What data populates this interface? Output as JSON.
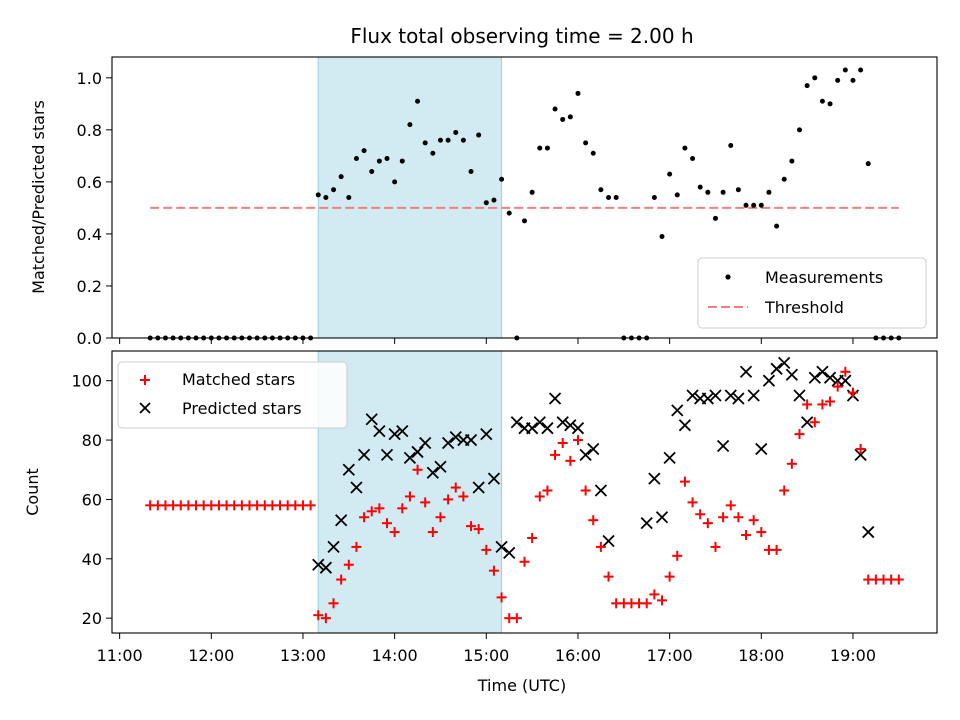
{
  "chart_data": [
    {
      "type": "scatter",
      "title": "Flux total observing time = 2.00 h",
      "xlabel": "",
      "ylabel": "Matched/Predicted stars",
      "ylim": [
        0,
        1.08
      ],
      "yticks": [
        "0.0",
        "0.2",
        "0.4",
        "0.6",
        "0.8",
        "1.0"
      ],
      "ytick_values": [
        0,
        0.2,
        0.4,
        0.6,
        0.8,
        1.0
      ],
      "shaded_region": [
        "13:10",
        "15:10"
      ],
      "legend": {
        "placement": "lower-right",
        "entries": [
          "Measurements",
          "Threshold"
        ]
      },
      "threshold": {
        "name": "Threshold",
        "value": 0.5,
        "x": [
          "11:20",
          "19:30"
        ],
        "color": "#f08080"
      },
      "series": [
        {
          "name": "Measurements",
          "color": "#000000",
          "x": [
            "11:20",
            "11:25",
            "11:30",
            "11:35",
            "11:40",
            "11:45",
            "11:50",
            "11:55",
            "12:00",
            "12:05",
            "12:10",
            "12:15",
            "12:20",
            "12:25",
            "12:30",
            "12:35",
            "12:40",
            "12:45",
            "12:50",
            "12:55",
            "13:00",
            "13:05",
            "13:10",
            "13:15",
            "13:20",
            "13:25",
            "13:30",
            "13:35",
            "13:40",
            "13:45",
            "13:50",
            "13:55",
            "14:00",
            "14:05",
            "14:10",
            "14:15",
            "14:20",
            "14:25",
            "14:30",
            "14:35",
            "14:40",
            "14:45",
            "14:50",
            "14:55",
            "15:00",
            "15:05",
            "15:10",
            "15:15",
            "15:20",
            "15:25",
            "15:30",
            "15:35",
            "15:40",
            "15:45",
            "15:50",
            "15:55",
            "16:00",
            "16:05",
            "16:10",
            "16:15",
            "16:20",
            "16:25",
            "16:30",
            "16:35",
            "16:40",
            "16:45",
            "16:50",
            "16:55",
            "17:00",
            "17:05",
            "17:10",
            "17:15",
            "17:20",
            "17:25",
            "17:30",
            "17:35",
            "17:40",
            "17:45",
            "17:50",
            "17:55",
            "18:00",
            "18:05",
            "18:10",
            "18:15",
            "18:20",
            "18:25",
            "18:30",
            "18:35",
            "18:40",
            "18:45",
            "18:50",
            "18:55",
            "19:00",
            "19:05",
            "19:10",
            "19:15",
            "19:20",
            "19:25",
            "19:30"
          ],
          "y": [
            0,
            0,
            0,
            0,
            0,
            0,
            0,
            0,
            0,
            0,
            0,
            0,
            0,
            0,
            0,
            0,
            0,
            0,
            0,
            0,
            0,
            0,
            0.55,
            0.54,
            0.57,
            0.62,
            0.54,
            0.69,
            0.72,
            0.64,
            0.68,
            0.69,
            0.6,
            0.68,
            0.82,
            0.91,
            0.75,
            0.71,
            0.76,
            0.76,
            0.79,
            0.76,
            0.64,
            0.78,
            0.52,
            0.53,
            0.61,
            0.48,
            0,
            0.45,
            0.56,
            0.73,
            0.73,
            0.88,
            0.84,
            0.85,
            0.94,
            0.75,
            0.71,
            0.57,
            0.54,
            0.54,
            0,
            0,
            0,
            0,
            0.54,
            0.39,
            0.63,
            0.55,
            0.73,
            0.69,
            0.58,
            0.56,
            0.46,
            0.56,
            0.74,
            0.57,
            0.51,
            0.51,
            0.51,
            0.56,
            0.43,
            0.61,
            0.68,
            0.8,
            0.97,
            1.0,
            0.91,
            0.9,
            0.99,
            1.03,
            0.99,
            1.03,
            0.67,
            0,
            0,
            0,
            0
          ]
        }
      ]
    },
    {
      "type": "scatter",
      "title": "",
      "xlabel": "Time (UTC)",
      "ylabel": "Count",
      "xlim": [
        "10:55",
        "19:55"
      ],
      "xticks": [
        "11:00",
        "12:00",
        "13:00",
        "14:00",
        "15:00",
        "16:00",
        "17:00",
        "18:00",
        "19:00"
      ],
      "ylim": [
        15,
        110
      ],
      "yticks": [
        "20",
        "40",
        "60",
        "80",
        "100"
      ],
      "ytick_values": [
        20,
        40,
        60,
        80,
        100
      ],
      "shaded_region": [
        "13:10",
        "15:10"
      ],
      "legend": {
        "placement": "upper-left",
        "entries": [
          "Matched stars",
          "Predicted stars"
        ]
      },
      "series": [
        {
          "name": "Matched stars",
          "color": "#ff0000",
          "x": [
            "11:20",
            "11:25",
            "11:30",
            "11:35",
            "11:40",
            "11:45",
            "11:50",
            "11:55",
            "12:00",
            "12:05",
            "12:10",
            "12:15",
            "12:20",
            "12:25",
            "12:30",
            "12:35",
            "12:40",
            "12:45",
            "12:50",
            "12:55",
            "13:00",
            "13:05",
            "13:10",
            "13:15",
            "13:20",
            "13:25",
            "13:30",
            "13:35",
            "13:40",
            "13:45",
            "13:50",
            "13:55",
            "14:00",
            "14:05",
            "14:10",
            "14:15",
            "14:20",
            "14:25",
            "14:30",
            "14:35",
            "14:40",
            "14:45",
            "14:50",
            "14:55",
            "15:00",
            "15:05",
            "15:10",
            "15:15",
            "15:20",
            "15:25",
            "15:30",
            "15:35",
            "15:40",
            "15:45",
            "15:50",
            "15:55",
            "16:00",
            "16:05",
            "16:10",
            "16:15",
            "16:20",
            "16:25",
            "16:30",
            "16:35",
            "16:40",
            "16:45",
            "16:50",
            "16:55",
            "17:00",
            "17:05",
            "17:10",
            "17:15",
            "17:20",
            "17:25",
            "17:30",
            "17:35",
            "17:40",
            "17:45",
            "17:50",
            "17:55",
            "18:00",
            "18:05",
            "18:10",
            "18:15",
            "18:20",
            "18:25",
            "18:30",
            "18:35",
            "18:40",
            "18:45",
            "18:50",
            "18:55",
            "19:00",
            "19:05",
            "19:10",
            "19:15",
            "19:20",
            "19:25",
            "19:30"
          ],
          "y": [
            58,
            58,
            58,
            58,
            58,
            58,
            58,
            58,
            58,
            58,
            58,
            58,
            58,
            58,
            58,
            58,
            58,
            58,
            58,
            58,
            58,
            58,
            21,
            20,
            25,
            33,
            38,
            44,
            54,
            56,
            57,
            52,
            49,
            57,
            61,
            70,
            59,
            49,
            54,
            60,
            64,
            61,
            51,
            50,
            43,
            36,
            27,
            20,
            20,
            39,
            47,
            61,
            63,
            75,
            79,
            73,
            80,
            63,
            53,
            44,
            34,
            25,
            25,
            25,
            25,
            25,
            28,
            26,
            34,
            41,
            66,
            59,
            55,
            52,
            44,
            54,
            58,
            54,
            48,
            53,
            49,
            43,
            43,
            63,
            72,
            82,
            92,
            86,
            92,
            93,
            98,
            103,
            96,
            77,
            33,
            33,
            33,
            33,
            33
          ]
        },
        {
          "name": "Predicted stars",
          "color": "#000000",
          "x": [
            "13:10",
            "13:15",
            "13:20",
            "13:25",
            "13:30",
            "13:35",
            "13:40",
            "13:45",
            "13:50",
            "13:55",
            "14:00",
            "14:05",
            "14:10",
            "14:15",
            "14:20",
            "14:25",
            "14:30",
            "14:35",
            "14:40",
            "14:45",
            "14:50",
            "14:55",
            "15:00",
            "15:05",
            "15:10",
            "15:15",
            "15:20",
            "15:25",
            "15:30",
            "15:35",
            "15:40",
            "15:45",
            "15:50",
            "15:55",
            "16:00",
            "16:05",
            "16:10",
            "16:15",
            "16:20",
            "16:25",
            "16:30",
            "16:35",
            "16:40",
            "16:45",
            "16:50",
            "16:55",
            "17:00",
            "17:05",
            "17:10",
            "17:15",
            "17:20",
            "17:25",
            "17:30",
            "17:35",
            "17:40",
            "17:45",
            "17:50",
            "17:55",
            "18:00",
            "18:05",
            "18:10",
            "18:15",
            "18:20",
            "18:25",
            "18:30",
            "18:35",
            "18:40",
            "18:45",
            "18:50",
            "18:55",
            "19:00",
            "19:05",
            "19:10"
          ],
          "y": [
            38,
            37,
            44,
            53,
            70,
            64,
            75,
            87,
            83,
            75,
            82,
            83,
            74,
            76,
            79,
            69,
            71,
            79,
            81,
            80,
            80,
            64,
            82,
            67,
            44,
            42,
            86,
            84,
            84,
            86,
            84,
            94,
            86,
            85,
            84,
            75,
            77,
            63,
            46,
            null,
            null,
            null,
            null,
            52,
            67,
            54,
            74,
            90,
            85,
            95,
            94,
            94,
            95,
            78,
            95,
            94,
            103,
            95,
            77,
            100,
            104,
            106,
            102,
            95,
            86,
            101,
            103,
            101,
            100,
            100,
            95,
            75,
            49
          ]
        }
      ]
    }
  ]
}
